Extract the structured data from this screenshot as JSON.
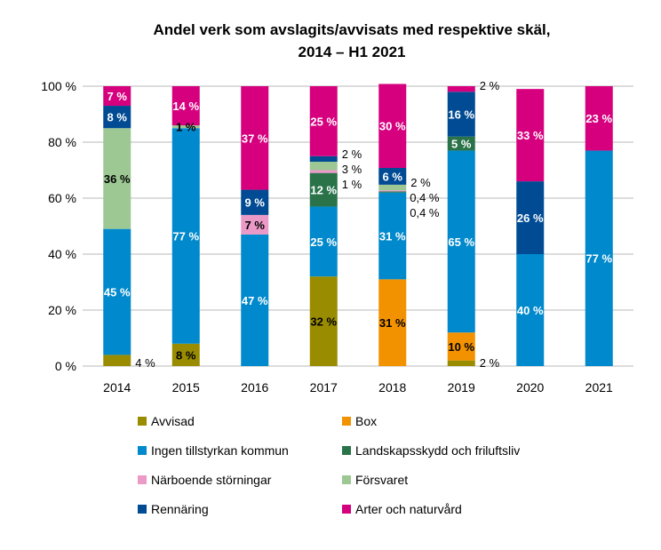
{
  "chart_data": {
    "type": "bar",
    "stacked": true,
    "title": [
      "Andel verk som avslagits/avvisats med respektive skäl,",
      "2014 – H1 2021"
    ],
    "xlabel": "",
    "ylabel": "",
    "ylim": [
      0,
      100
    ],
    "y_ticks": [
      "0 %",
      "20 %",
      "40 %",
      "60 %",
      "80 %",
      "100 %"
    ],
    "y_tick_values": [
      0,
      20,
      40,
      60,
      80,
      100
    ],
    "grid": true,
    "legend_position": "bottom",
    "categories": [
      "2014",
      "2015",
      "2016",
      "2017",
      "2018",
      "2019",
      "2020",
      "2021"
    ],
    "series": [
      {
        "name": "Avvisad",
        "color": "#9a8c00",
        "label_color": "#000000",
        "values": [
          4,
          8,
          0,
          32,
          0,
          2,
          0,
          0
        ]
      },
      {
        "name": "Box",
        "color": "#f39200",
        "label_color": "#000000",
        "values": [
          0,
          0,
          0,
          0,
          31,
          10,
          0,
          0
        ]
      },
      {
        "name": "Ingen tillstyrkan kommun",
        "color": "#0089cc",
        "label_color": "#ffffff",
        "values": [
          45,
          77,
          47,
          25,
          31,
          65,
          40,
          77
        ]
      },
      {
        "name": "Landskapsskydd och friluftsliv",
        "color": "#2a7349",
        "label_color": "#ffffff",
        "values": [
          0,
          0,
          0,
          12,
          0.4,
          5,
          0,
          0
        ]
      },
      {
        "name": "Närboende störningar",
        "color": "#eb9ac8",
        "label_color": "#000000",
        "values": [
          0,
          0,
          7,
          1,
          0.4,
          0,
          0,
          0
        ]
      },
      {
        "name": "Försvaret",
        "color": "#9dc893",
        "label_color": "#000000",
        "values": [
          36,
          1,
          0,
          3,
          2,
          0,
          0,
          0
        ]
      },
      {
        "name": "Rennäring",
        "color": "#004b93",
        "label_color": "#ffffff",
        "values": [
          8,
          0,
          9,
          2,
          6,
          16,
          26,
          0
        ]
      },
      {
        "name": "Arter och naturvård",
        "color": "#d6007f",
        "label_color": "#ffffff",
        "values": [
          7,
          14,
          37,
          25,
          30,
          2,
          33,
          23
        ]
      }
    ]
  }
}
